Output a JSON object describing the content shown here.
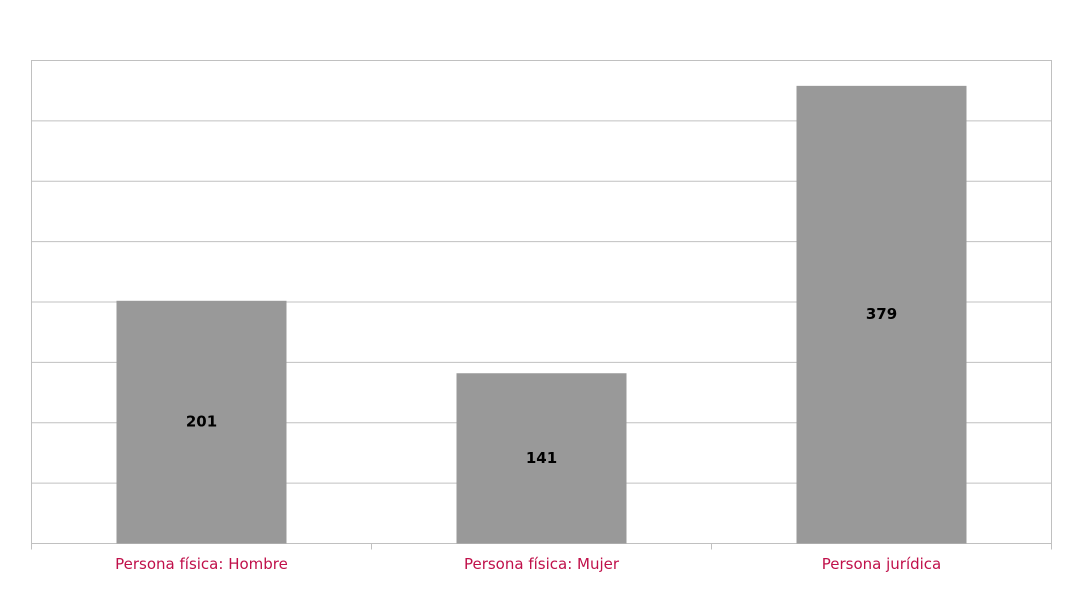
{
  "chart_data": {
    "type": "bar",
    "categories": [
      "Persona física: Hombre",
      "Persona física: Mujer",
      "Persona jurídica"
    ],
    "values": [
      201,
      141,
      379
    ],
    "color": "#999999",
    "label_color": "#c0104a",
    "ylim": [
      0,
      400
    ],
    "yticks": [
      0,
      50,
      100,
      150,
      200,
      250,
      300,
      350,
      400
    ],
    "grid": true
  }
}
